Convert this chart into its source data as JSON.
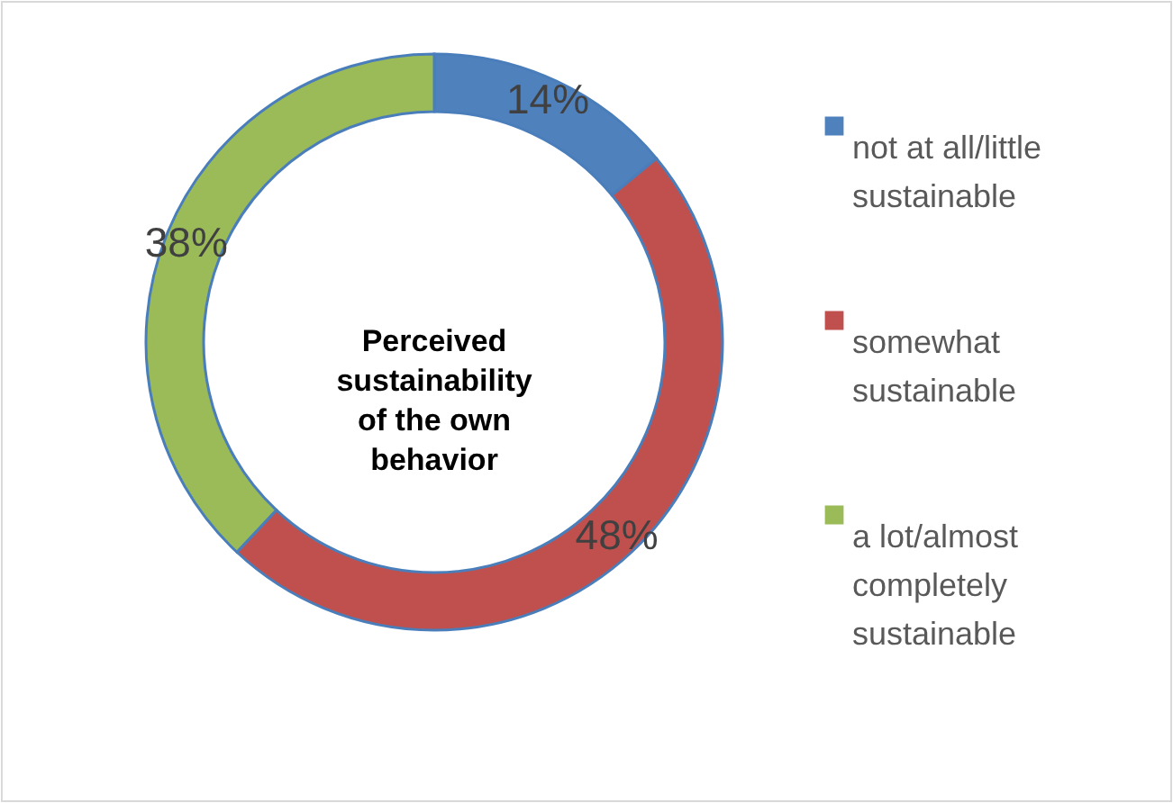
{
  "chart_data": {
    "type": "donut",
    "title": "Perceived\nsustainability\nof the own\nbehavior",
    "categories": [
      "not at all/little\nsustainable",
      "somewhat\nsustainable",
      "a lot/almost\ncompletely\nsustainable"
    ],
    "values": [
      14,
      48,
      38
    ],
    "colors": [
      "#4f81bd",
      "#c0504d",
      "#9bbb59"
    ],
    "value_labels": [
      "14%",
      "48%",
      "38%"
    ],
    "legend": "right"
  }
}
